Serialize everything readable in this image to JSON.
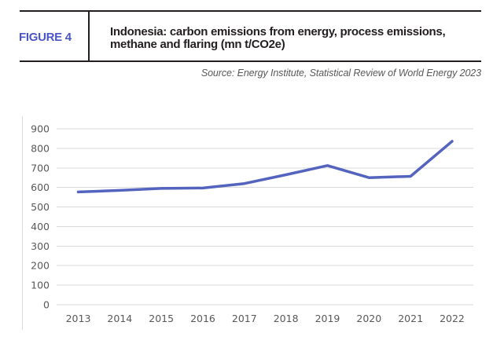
{
  "header": {
    "figure_label": "FIGURE 4",
    "title_line1": "Indonesia: carbon emissions from energy, process emissions,",
    "title_line2": "methane and flaring (mn t/CO2e)",
    "source": "Source: Energy Institute, Statistical Review of World Energy 2023"
  },
  "colors": {
    "accent_label": "#4b55c8",
    "line": "#5464be",
    "gridline": "#d9d9d9",
    "axis_text": "#595959",
    "header_rule": "#231f20",
    "source_text": "#58595b"
  },
  "chart_data": {
    "type": "line",
    "title": "Indonesia: carbon emissions from energy, process emissions, methane and flaring (mn t/CO2e)",
    "xlabel": "",
    "ylabel": "",
    "x": [
      "2013",
      "2014",
      "2015",
      "2016",
      "2017",
      "2018",
      "2019",
      "2020",
      "2021",
      "2022"
    ],
    "values": [
      577,
      585,
      595,
      597,
      620,
      665,
      712,
      650,
      657,
      836
    ],
    "ylim": [
      0,
      900
    ],
    "ytick_step": 100,
    "yticks": [
      0,
      100,
      200,
      300,
      400,
      500,
      600,
      700,
      800,
      900
    ],
    "grid": "horizontal",
    "legend": "none",
    "line_color": "#5464be"
  }
}
